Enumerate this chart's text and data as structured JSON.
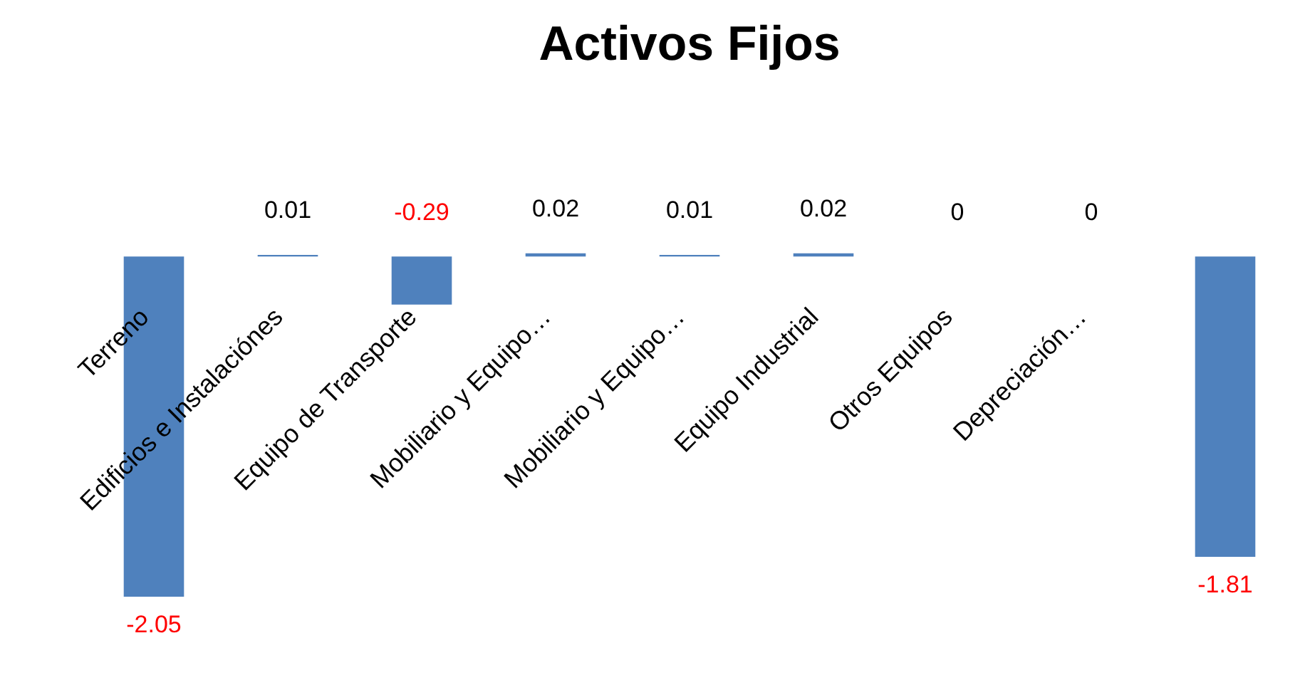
{
  "chart_data": {
    "type": "bar",
    "title": "Activos Fijos",
    "categories": [
      "Terreno",
      "Edificios e Instalaciónes",
      "Equipo de Transporte",
      "Mobiliario y Equipo…",
      "Mobiliario y Equipo…",
      "Equipo Industrial",
      "Otros Equipos",
      "Depreciación…",
      null
    ],
    "values": [
      -2.05,
      0.01,
      -0.29,
      0.02,
      0.01,
      0.02,
      0,
      0,
      -1.81
    ],
    "color": "#4f81bd",
    "data_labels": true,
    "legend": false
  }
}
